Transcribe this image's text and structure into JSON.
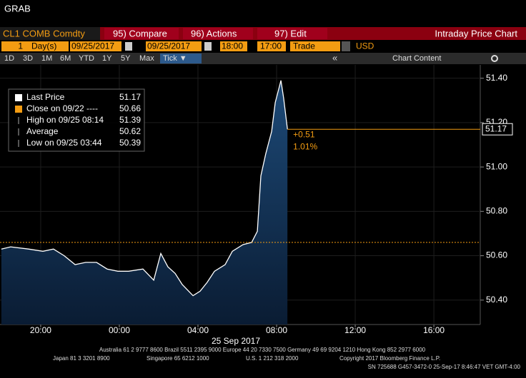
{
  "window_title": "GRAB",
  "toolbar": {
    "security": "CL1 COMB Comdty",
    "buttons": [
      "95) Compare",
      "96) Actions",
      "97) Edit"
    ],
    "title": "Intraday Price Chart"
  },
  "controls": {
    "period": "1",
    "period_unit": "Day(s)",
    "start_date": "09/25/2017",
    "end_date": "09/25/2017",
    "start_time": "18:00",
    "end_time": "17:00",
    "field": "Trade",
    "currency": "USD"
  },
  "ranges": [
    "1D",
    "3D",
    "1M",
    "6M",
    "YTD",
    "1Y",
    "5Y",
    "Max",
    "Tick ▼"
  ],
  "chart_tools": [
    "«",
    "Chart Content"
  ],
  "chart_data": {
    "type": "line",
    "x_label": "25 Sep 2017",
    "x": [
      0.0,
      0.47,
      1.38,
      2.11,
      2.65,
      3.2,
      3.75,
      4.29,
      4.84,
      5.38,
      5.93,
      6.47,
      7.2,
      7.75,
      8.11,
      8.47,
      8.84,
      9.2,
      9.75,
      10.11,
      10.47,
      10.84,
      11.38,
      11.75,
      12.29,
      12.73,
      13.02,
      13.2,
      13.45,
      13.75,
      13.93,
      14.22,
      14.36,
      14.55
    ],
    "series": [
      {
        "name": "Last Price",
        "color": "#ffffff",
        "values": [
          50.63,
          50.64,
          50.63,
          50.62,
          50.63,
          50.6,
          50.56,
          50.57,
          50.57,
          50.54,
          50.53,
          50.53,
          50.54,
          50.49,
          50.61,
          50.55,
          50.52,
          50.47,
          50.42,
          50.44,
          50.48,
          50.53,
          50.56,
          50.62,
          50.65,
          50.66,
          50.71,
          50.96,
          51.06,
          51.16,
          51.29,
          51.39,
          51.31,
          51.17
        ]
      }
    ],
    "xlim": [
      -0.07,
      24.36
    ],
    "xticks": [
      {
        "value": 2,
        "label": "20:00"
      },
      {
        "value": 6,
        "label": "00:00"
      },
      {
        "value": 10,
        "label": "04:00"
      },
      {
        "value": 14,
        "label": "08:00"
      },
      {
        "value": 18,
        "label": "12:00"
      },
      {
        "value": 22,
        "label": "16:00"
      }
    ],
    "ylim": [
      50.29,
      51.46
    ],
    "yticks": [
      {
        "value": 50.4,
        "label": "50.40"
      },
      {
        "value": 50.6,
        "label": "50.60"
      },
      {
        "value": 50.8,
        "label": "50.80"
      },
      {
        "value": 51.0,
        "label": "51.00"
      },
      {
        "value": 51.2,
        "label": "51.20"
      },
      {
        "value": 51.4,
        "label": "51.40"
      }
    ],
    "grid": true,
    "close": 50.66,
    "close_color": "#f39c12",
    "last": 51.17,
    "change": {
      "value": 0.51,
      "label": "+0.51"
    },
    "change_pct": {
      "value": 1.01,
      "label": "1.01%"
    },
    "legend": [
      {
        "label": "Last Price",
        "value": 51.17
      },
      {
        "label": "Close on 09/22 ----",
        "value": 50.66
      },
      {
        "label": "High on 09/25 08:14",
        "value": 51.39
      },
      {
        "label": "Average",
        "value": 50.62
      },
      {
        "label": "Low on 09/25 03:44",
        "value": 50.39
      }
    ]
  },
  "footer": {
    "line1": "Australia 61 2 9777 8600 Brazil 5511 2395 9000 Europe 44 20 7330 7500 Germany 49 69 9204 1210 Hong Kong 852 2977 6000",
    "line2": [
      "Japan 81 3 3201 8900",
      "Singapore 65 6212 1000",
      "U.S. 1 212 318 2000",
      "Copyright 2017 Bloomberg Finance L.P."
    ],
    "line3": "SN 725688 G457-3472-0 25-Sep-17  8:46:47 VET  GMT-4:00"
  }
}
